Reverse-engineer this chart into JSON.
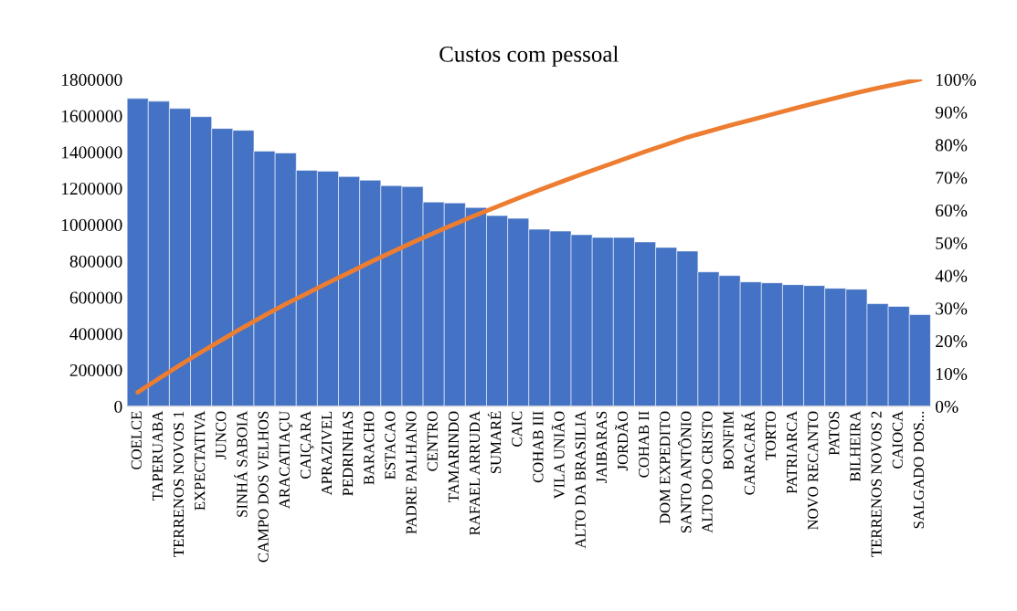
{
  "chart_data": {
    "type": "bar",
    "title": "Custos com pessoal",
    "categories": [
      "COELCE",
      "TAPERUABA",
      "TERRENOS NOVOS 1",
      "EXPECTATIVA",
      "JUNCO",
      "SINHÁ SABOIA",
      "CAMPO DOS VELHOS",
      "ARACATIAÇU",
      "CAIÇARA",
      "APRAZIVEL",
      "PEDRINHAS",
      "BARACHO",
      "ESTACAO",
      "PADRE PALHANO",
      "CENTRO",
      "TAMARINDO",
      "RAFAEL ARRUDA",
      "SUMARÉ",
      "CAIC",
      "COHAB III",
      "VILA UNIÃO",
      "ALTO DA BRASILIA",
      "JAIBARAS",
      "JORDÃO",
      "COHAB II",
      "DOM EXPEDITO",
      "SANTO ANTÔNIO",
      "ALTO DO CRISTO",
      "BONFIM",
      "CARACARÁ",
      "TORTO",
      "PATRIARCA",
      "NOVO RECANTO",
      "PATOS",
      "BILHEIRA",
      "TERRENOS NOVOS 2",
      "CAIOCA",
      "SALGADO DOS..."
    ],
    "series": [
      {
        "color": "#4472c4",
        "values": [
          1695000,
          1680000,
          1640000,
          1595000,
          1530000,
          1520000,
          1405000,
          1395000,
          1300000,
          1295000,
          1265000,
          1245000,
          1215000,
          1210000,
          1125000,
          1120000,
          1095000,
          1050000,
          1035000,
          975000,
          965000,
          945000,
          930000,
          930000,
          905000,
          875000,
          855000,
          740000,
          720000,
          685000,
          680000,
          670000,
          665000,
          650000,
          645000,
          565000,
          550000,
          505000
        ]
      },
      {
        "type": "line",
        "axis": "y2",
        "color": "#ed7d31",
        "values": [
          4.3,
          8.5,
          12.6,
          16.6,
          20.4,
          24.2,
          27.8,
          31.3,
          34.5,
          37.8,
          40.9,
          44.1,
          47.1,
          50.1,
          53.0,
          55.8,
          58.5,
          61.1,
          63.7,
          66.2,
          68.6,
          71.0,
          73.3,
          75.6,
          77.9,
          80.1,
          82.3,
          84.1,
          85.9,
          87.6,
          89.3,
          91.0,
          92.7,
          94.3,
          95.9,
          97.4,
          98.7,
          100
        ]
      }
    ],
    "ylim": [
      0,
      1800000
    ],
    "yticks": [
      0,
      200000,
      400000,
      600000,
      800000,
      1000000,
      1200000,
      1400000,
      1600000,
      1800000
    ],
    "y2lim": [
      0,
      100
    ],
    "y2ticks": [
      {
        "value": 0,
        "label": "0%"
      },
      {
        "value": 10,
        "label": "10%"
      },
      {
        "value": 20,
        "label": "20%"
      },
      {
        "value": 30,
        "label": "30%"
      },
      {
        "value": 40,
        "label": "40%"
      },
      {
        "value": 50,
        "label": "50%"
      },
      {
        "value": 60,
        "label": "60%"
      },
      {
        "value": 70,
        "label": "70%"
      },
      {
        "value": 80,
        "label": "80%"
      },
      {
        "value": 90,
        "label": "90%"
      },
      {
        "value": 100,
        "label": "100%"
      }
    ],
    "grid": false,
    "legend": false,
    "marker": "none",
    "line_style": "solid"
  }
}
